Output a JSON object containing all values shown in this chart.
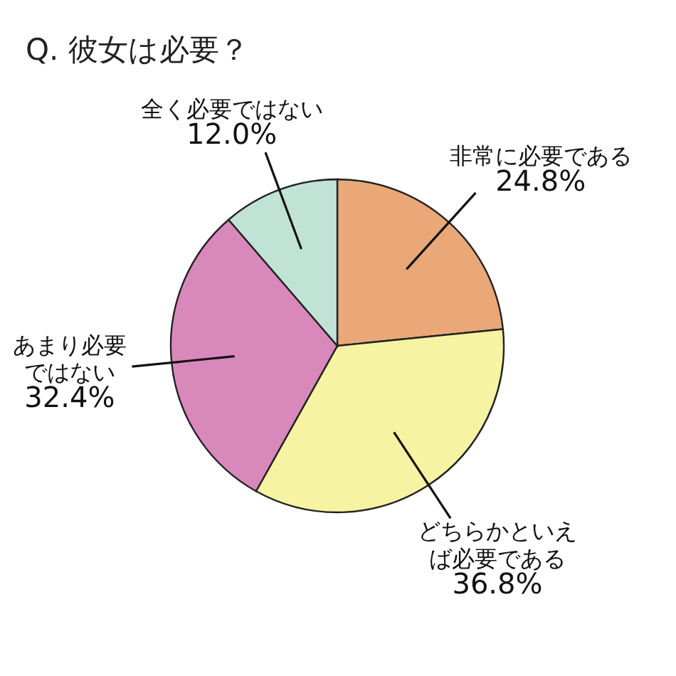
{
  "chart_data": {
    "type": "pie",
    "title": "Q. 彼女は必要？",
    "categories": [
      "非常に必要である",
      "どちらかといえば必要である",
      "あまり必要ではない",
      "全く必要ではない"
    ],
    "values": [
      24.8,
      36.8,
      32.4,
      12.0
    ],
    "value_labels": [
      "24.8%",
      "36.8%",
      "32.4%",
      "12.0%"
    ],
    "colors": [
      "#eaa878",
      "#f6f3a2",
      "#d988bc",
      "#c1e3d6"
    ],
    "legend": false
  }
}
